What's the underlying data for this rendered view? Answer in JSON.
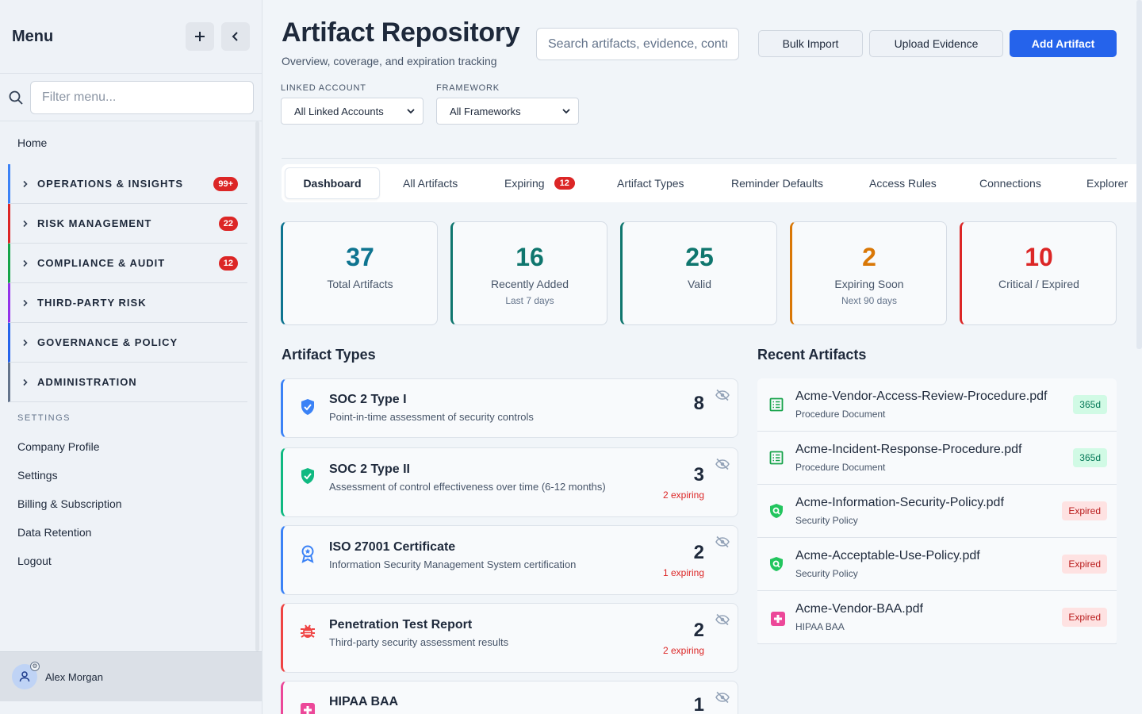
{
  "sidebar": {
    "title": "Menu",
    "filter_placeholder": "Filter menu...",
    "home": "Home",
    "sections": [
      {
        "label": "OPERATIONS & INSIGHTS",
        "badge": "99+",
        "color": "#3b82f6"
      },
      {
        "label": "RISK MANAGEMENT",
        "badge": "22",
        "color": "#dc2626"
      },
      {
        "label": "COMPLIANCE & AUDIT",
        "badge": "12",
        "color": "#16a34a"
      },
      {
        "label": "THIRD-PARTY RISK",
        "badge": "",
        "color": "#9333ea"
      },
      {
        "label": "GOVERNANCE & POLICY",
        "badge": "",
        "color": "#2563eb"
      },
      {
        "label": "ADMINISTRATION",
        "badge": "",
        "color": "#64748b"
      }
    ],
    "settings_heading": "SETTINGS",
    "settings_links": [
      "Company Profile",
      "Settings",
      "Billing & Subscription",
      "Data Retention",
      "Logout"
    ],
    "user_name": "Alex Morgan"
  },
  "header": {
    "title": "Artifact Repository",
    "subtitle": "Overview, coverage, and expiration tracking",
    "search_placeholder": "Search artifacts, evidence, controls...",
    "bulk_import": "Bulk Import",
    "upload_evidence": "Upload Evidence",
    "add_artifact": "Add Artifact"
  },
  "filters": {
    "linked_account_label": "LINKED ACCOUNT",
    "linked_account_value": "All Linked Accounts",
    "framework_label": "FRAMEWORK",
    "framework_value": "All Frameworks"
  },
  "tabs": [
    {
      "label": "Dashboard",
      "active": true,
      "badge": ""
    },
    {
      "label": "All Artifacts",
      "badge": ""
    },
    {
      "label": "Expiring",
      "badge": "12"
    },
    {
      "label": "Artifact Types",
      "badge": ""
    },
    {
      "label": "Reminder Defaults",
      "badge": ""
    },
    {
      "label": "Access Rules",
      "badge": ""
    },
    {
      "label": "Connections",
      "badge": ""
    },
    {
      "label": "Explorer",
      "badge": ""
    }
  ],
  "stats": [
    {
      "value": "37",
      "label": "Total Artifacts",
      "sub": "",
      "color": "#0e7490"
    },
    {
      "value": "16",
      "label": "Recently Added",
      "sub": "Last 7 days",
      "color": "#0f766e"
    },
    {
      "value": "25",
      "label": "Valid",
      "sub": "",
      "color": "#0f766e"
    },
    {
      "value": "2",
      "label": "Expiring Soon",
      "sub": "Next 90 days",
      "color": "#d97706"
    },
    {
      "value": "10",
      "label": "Critical / Expired",
      "sub": "",
      "color": "#dc2626"
    }
  ],
  "artifact_types": {
    "heading": "Artifact Types",
    "items": [
      {
        "name": "SOC 2 Type I",
        "desc": "Point-in-time assessment of security controls",
        "count": "8",
        "expiring": "",
        "icon": "shield-check-icon",
        "color": "#3b82f6"
      },
      {
        "name": "SOC 2 Type II",
        "desc": "Assessment of control effectiveness over time (6-12 months)",
        "count": "3",
        "expiring": "2 expiring",
        "icon": "shield-check-icon",
        "color": "#10b981"
      },
      {
        "name": "ISO 27001 Certificate",
        "desc": "Information Security Management System certification",
        "count": "2",
        "expiring": "1 expiring",
        "icon": "award-icon",
        "color": "#3b82f6"
      },
      {
        "name": "Penetration Test Report",
        "desc": "Third-party security assessment results",
        "count": "2",
        "expiring": "2 expiring",
        "icon": "bug-icon",
        "color": "#ef4444"
      },
      {
        "name": "HIPAA BAA",
        "desc": "",
        "count": "1",
        "expiring": "",
        "icon": "medical-cross-icon",
        "color": "#ec4899"
      }
    ]
  },
  "recent": {
    "heading": "Recent Artifacts",
    "items": [
      {
        "name": "Acme-Vendor-Access-Review-Procedure.pdf",
        "type": "Procedure Document",
        "badge": "365d",
        "status": "ok",
        "icon": "document-list-icon"
      },
      {
        "name": "Acme-Incident-Response-Procedure.pdf",
        "type": "Procedure Document",
        "badge": "365d",
        "status": "ok",
        "icon": "document-list-icon"
      },
      {
        "name": "Acme-Information-Security-Policy.pdf",
        "type": "Security Policy",
        "badge": "Expired",
        "status": "bad",
        "icon": "shield-search-icon"
      },
      {
        "name": "Acme-Acceptable-Use-Policy.pdf",
        "type": "Security Policy",
        "badge": "Expired",
        "status": "bad",
        "icon": "shield-search-icon"
      },
      {
        "name": "Acme-Vendor-BAA.pdf",
        "type": "HIPAA BAA",
        "badge": "Expired",
        "status": "bad",
        "icon": "medical-cross-icon"
      }
    ]
  }
}
